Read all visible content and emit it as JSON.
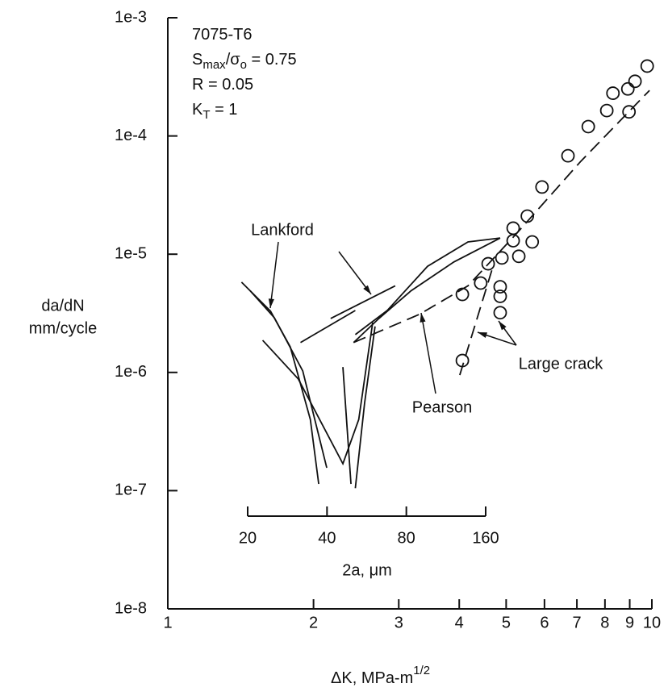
{
  "chart_data": {
    "type": "scatter",
    "xlabel": [
      "ΔK,  MPa-m",
      "1/2"
    ],
    "ylabel": [
      "da/dN",
      "mm/cycle"
    ],
    "notes": [
      [
        "7075-T6"
      ],
      [
        "S",
        "max",
        "/σ",
        "o",
        " = 0.75"
      ],
      [
        "R = 0.05"
      ],
      [
        "K",
        "T",
        " = 1"
      ]
    ],
    "log_x": true,
    "log_y": true,
    "xlim": [
      1,
      10
    ],
    "xticks": [
      1,
      2,
      3,
      4,
      5,
      6,
      7,
      8,
      9,
      10
    ],
    "ylim": [
      1e-08,
      0.001
    ],
    "yticks": [
      {
        "value": 1e-08,
        "label": "1e-8"
      },
      {
        "value": 1e-07,
        "label": "1e-7"
      },
      {
        "value": 1e-06,
        "label": "1e-6"
      },
      {
        "value": 1e-05,
        "label": "1e-5"
      },
      {
        "value": 0.0001,
        "label": "1e-4"
      },
      {
        "value": 0.001,
        "label": "1e-3"
      }
    ],
    "inset_scale": {
      "label": "2a, μm",
      "lim": [
        20,
        160
      ],
      "ticks": [
        20,
        40,
        80,
        160
      ]
    },
    "series": [
      {
        "name": "Lankford",
        "color": "#111111",
        "style": "solid",
        "x": [
          1.42,
          1.63,
          1.79,
          1.97,
          2.05,
          null,
          1.48,
          1.66,
          1.9,
          2.13,
          null,
          1.57,
          1.86,
          2.3,
          2.48,
          2.65,
          null,
          2.3,
          2.39,
          null,
          2.44,
          2.55,
          2.68,
          null,
          1.88,
          2.44,
          null,
          2.17,
          2.95
        ],
        "values": [
          5.8e-06,
          3.3e-06,
          1.65e-06,
          4e-07,
          1.14e-07,
          null,
          4.9e-06,
          2.9e-06,
          1.03e-06,
          1.56e-07,
          null,
          1.87e-06,
          8.8e-07,
          1.69e-07,
          4e-07,
          2.64e-06,
          null,
          1.11e-06,
          1.14e-07,
          null,
          1.05e-07,
          5.5e-07,
          2.45e-06,
          null,
          1.79e-06,
          3.34e-06,
          null,
          2.86e-06,
          5.4e-06
        ]
      },
      {
        "name": "Pearson",
        "color": "#111111",
        "style": "solid",
        "x": [
          2.44,
          2.84,
          3.44,
          4.17,
          4.86,
          null,
          2.42,
          2.73,
          3.18,
          3.9,
          4.86
        ],
        "values": [
          2.09e-06,
          3.34e-06,
          7.9e-06,
          1.27e-05,
          1.37e-05,
          null,
          1.79e-06,
          2.86e-06,
          4.9e-06,
          8.6e-06,
          1.37e-05
        ]
      },
      {
        "name": "Large crack",
        "color": "#111111",
        "style": "points",
        "x": [
          4.06,
          4.06,
          4.43,
          4.59,
          4.86,
          4.86,
          4.86,
          4.9,
          5.17,
          5.17,
          5.31,
          5.53,
          5.66,
          5.93,
          6.71,
          7.39,
          8.07,
          8.31,
          8.92,
          9.23,
          8.97,
          9.78
        ],
        "values": [
          1.26e-06,
          4.57e-06,
          5.7e-06,
          8.3e-06,
          5.3e-06,
          4.4e-06,
          3.2e-06,
          9.3e-06,
          1.66e-05,
          1.3e-05,
          9.6e-06,
          2.1e-05,
          1.27e-05,
          3.7e-05,
          6.8e-05,
          0.00012,
          0.000164,
          0.00023,
          0.00025,
          0.00029,
          0.00016,
          0.00039
        ],
        "fit": {
          "x": [
            2.42,
            3.31,
            4.17,
            5.25,
            7.13,
            9.89,
            null,
            4.01,
            4.67
          ],
          "values": [
            1.79e-06,
            3.1e-06,
            5.4e-06,
            1.49e-05,
            6.1e-05,
            0.000243,
            null,
            9.5e-07,
            7.3e-06
          ]
        }
      }
    ]
  }
}
